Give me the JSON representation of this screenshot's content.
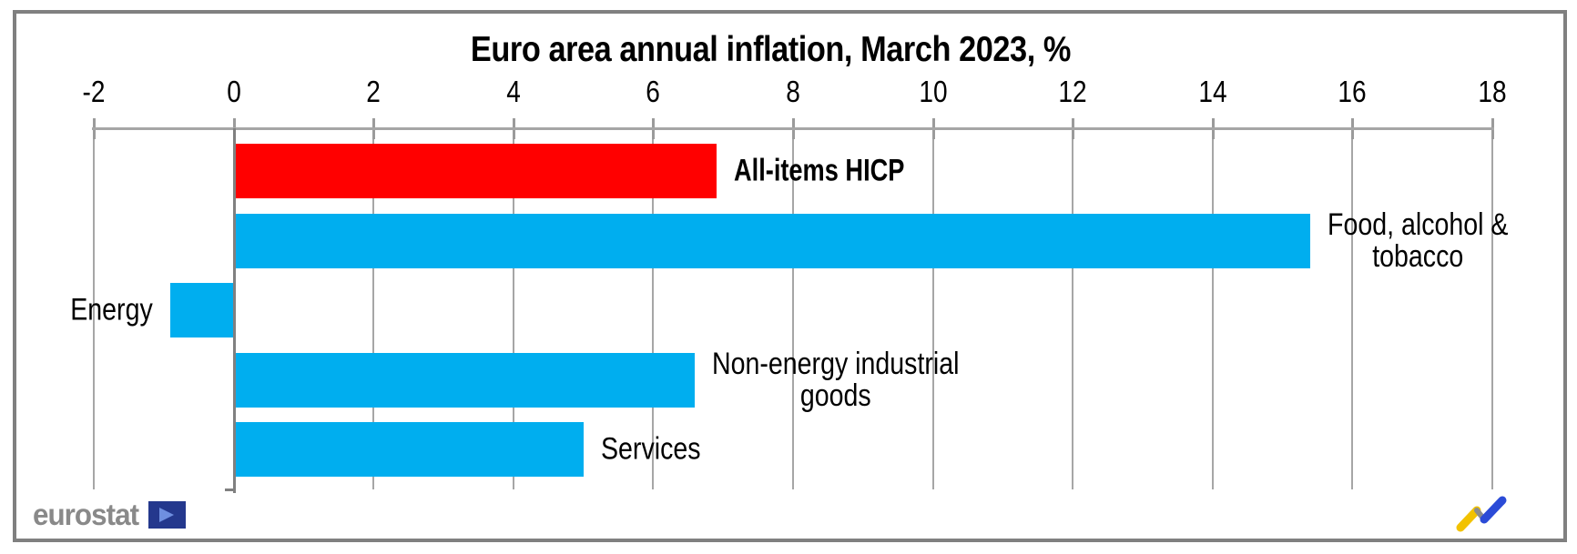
{
  "chart_data": {
    "type": "bar",
    "orientation": "horizontal",
    "title": "Euro area annual inflation, March 2023, %",
    "categories": [
      "All-items HICP",
      "Food, alcohol & tobacco",
      "Energy",
      "Non-energy industrial goods",
      "Services"
    ],
    "values": [
      6.9,
      15.4,
      -0.9,
      6.6,
      5.0
    ],
    "unit": "%",
    "xlim": [
      -2,
      18
    ],
    "xticks": [
      -2,
      0,
      2,
      4,
      6,
      8,
      10,
      12,
      14,
      16,
      18
    ],
    "xlabel": "",
    "ylabel": "",
    "axis_position": "top",
    "grid": true,
    "legend": "none",
    "bar_colors": [
      "#ff0000",
      "#00aeef",
      "#00aeef",
      "#00aeef",
      "#00aeef"
    ],
    "label_lines": [
      [
        "All-items HICP"
      ],
      [
        "Food, alcohol &",
        "tobacco"
      ],
      [
        "Energy"
      ],
      [
        "Non-energy industrial",
        "goods"
      ],
      [
        "Services"
      ]
    ],
    "label_sides": [
      "right",
      "right",
      "left",
      "right",
      "right"
    ],
    "label_bold": [
      true,
      false,
      false,
      false,
      false
    ]
  },
  "branding": {
    "logo_text": "eurostat"
  },
  "icons": {
    "eu_flag_icon": "navy-box-with-arrow",
    "trend_icon": "zigzag-trend-line"
  },
  "colors": {
    "highlight_bar": "#ff0000",
    "default_bar": "#00aeef",
    "gridline": "#a6a6a6",
    "axis": "#808080",
    "frame_border": "#808080",
    "logo_gray": "#898989",
    "logo_navy": "#24388d",
    "trend_yellow": "#f2c200",
    "trend_connector": "#8c8c8c",
    "trend_blue": "#2b4bd7"
  }
}
